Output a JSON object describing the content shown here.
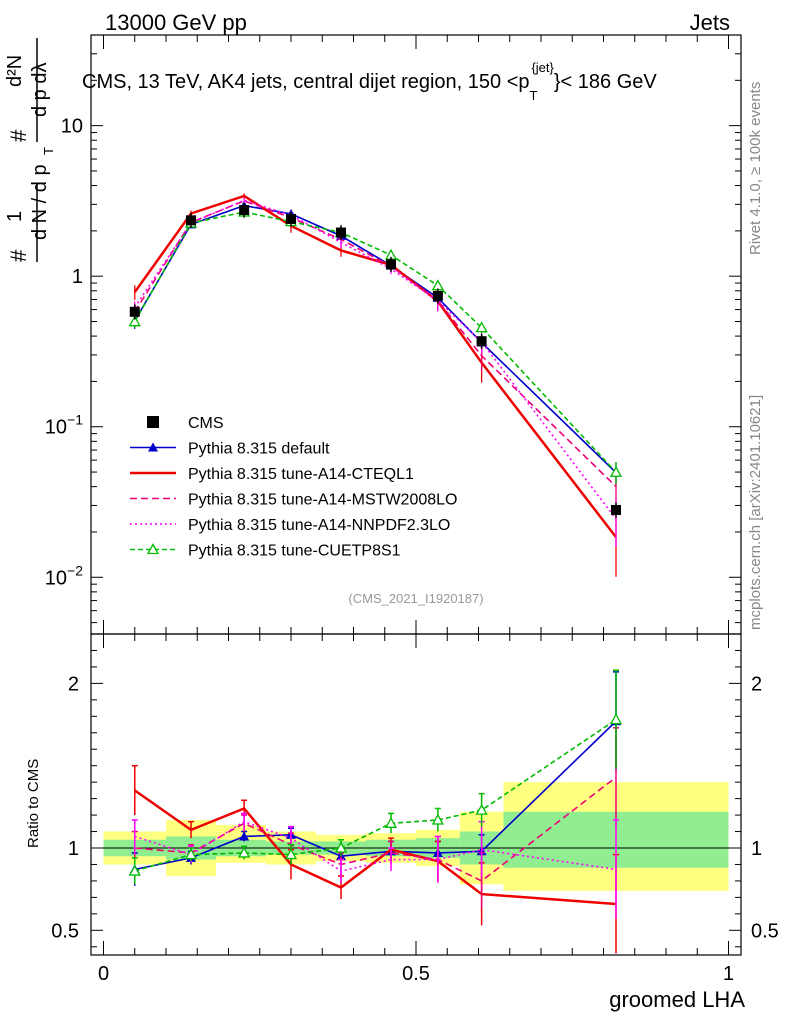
{
  "header": {
    "left": "13000 GeV pp",
    "right": "Jets",
    "title": "CMS, 13 TeV, AK4 jets, central dijet region, 150 <p",
    "title_sup": "{jet}",
    "title_sub": "T",
    "title_end": "}< 186 GeV",
    "analysis_id": "(CMS_2021_I1920187)"
  },
  "side_labels": {
    "rivet": "Rivet 4.1.0, ≥ 100k events",
    "mcplots": "mcplots.cern.ch [arXiv:2401.10621]"
  },
  "ylabel_main": {
    "hash": "#",
    "one": "1",
    "dN": "d N / d p",
    "T": "T",
    "d2N": "d²N",
    "dpT_dlambda": "d p   dλ"
  },
  "ylabel_ratio": "Ratio to CMS",
  "xlabel": "groomed LHA",
  "colors": {
    "cms": "#000000",
    "default": "#0000cc",
    "cteql1": "#ee0000",
    "mstw": "#ee0077",
    "nnpdf": "#ff00ff",
    "cuetp": "#00bb00",
    "band_outer": "#ffff80",
    "band_inner": "#90ee90"
  },
  "chart_data": {
    "type": "line",
    "x": [
      0.05,
      0.14,
      0.225,
      0.3,
      0.38,
      0.46,
      0.535,
      0.605,
      0.82
    ],
    "x_range": [
      -0.02,
      1.02
    ],
    "main": {
      "yscale": "log",
      "ylim": [
        0.0042,
        40
      ],
      "yticks": [
        {
          "v": 0.01,
          "label": "10",
          "sup": "−2"
        },
        {
          "v": 0.1,
          "label": "10",
          "sup": "−1"
        },
        {
          "v": 1,
          "label": "1",
          "sup": ""
        },
        {
          "v": 10,
          "label": "10",
          "sup": ""
        }
      ]
    },
    "ratio": {
      "ylim": [
        0.35,
        2.3
      ],
      "yticks": [
        0.5,
        1,
        2
      ]
    },
    "xticks": [
      {
        "v": 0,
        "label": "0"
      },
      {
        "v": 0.5,
        "label": "0.5"
      },
      {
        "v": 1,
        "label": "1"
      }
    ],
    "data": {
      "name": "CMS",
      "values": [
        0.58,
        2.35,
        2.75,
        2.4,
        1.95,
        1.2,
        0.74,
        0.37,
        0.028
      ],
      "bands": [
        {
          "x0": 0.0,
          "x1": 0.1,
          "in": [
            0.95,
            1.05
          ],
          "out": [
            0.9,
            1.1
          ]
        },
        {
          "x0": 0.1,
          "x1": 0.18,
          "in": [
            0.93,
            1.07
          ],
          "out": [
            0.83,
            1.17
          ]
        },
        {
          "x0": 0.18,
          "x1": 0.26,
          "in": [
            0.95,
            1.05
          ],
          "out": [
            0.91,
            1.14
          ]
        },
        {
          "x0": 0.26,
          "x1": 0.34,
          "in": [
            0.96,
            1.04
          ],
          "out": [
            0.9,
            1.1
          ]
        },
        {
          "x0": 0.34,
          "x1": 0.42,
          "in": [
            0.96,
            1.04
          ],
          "out": [
            0.92,
            1.08
          ]
        },
        {
          "x0": 0.42,
          "x1": 0.5,
          "in": [
            0.95,
            1.05
          ],
          "out": [
            0.91,
            1.09
          ]
        },
        {
          "x0": 0.5,
          "x1": 0.57,
          "in": [
            0.94,
            1.06
          ],
          "out": [
            0.89,
            1.11
          ]
        },
        {
          "x0": 0.57,
          "x1": 0.64,
          "in": [
            0.9,
            1.1
          ],
          "out": [
            0.78,
            1.22
          ]
        },
        {
          "x0": 0.64,
          "x1": 1.0,
          "in": [
            0.88,
            1.22
          ],
          "out": [
            0.74,
            1.4
          ]
        }
      ]
    },
    "series": [
      {
        "name": "Pythia 8.315 default",
        "key": "default",
        "dash": "",
        "marker": "triangle-filled",
        "ratio": [
          0.87,
          0.94,
          1.07,
          1.08,
          0.95,
          0.98,
          0.97,
          0.98,
          1.77
        ],
        "err": [
          0.1,
          0.04,
          0.03,
          0.04,
          0.05,
          0.06,
          0.07,
          0.1,
          0.3
        ]
      },
      {
        "name": "Pythia 8.315 tune-A14-CTEQL1",
        "key": "cteql1",
        "dash": "",
        "marker": "none",
        "ratio": [
          1.35,
          1.11,
          1.24,
          0.9,
          0.76,
          0.99,
          0.92,
          0.72,
          0.66
        ],
        "err": [
          0.15,
          0.05,
          0.05,
          0.09,
          0.07,
          0.07,
          0.12,
          0.19,
          0.3
        ]
      },
      {
        "name": "Pythia 8.315 tune-A14-MSTW2008LO",
        "key": "mstw",
        "dash": "7,4",
        "marker": "none",
        "ratio": [
          1.0,
          0.97,
          1.15,
          1.02,
          0.9,
          0.97,
          0.93,
          0.8,
          1.43
        ],
        "err": [
          0.1,
          0.05,
          0.05,
          0.07,
          0.07,
          0.07,
          0.14,
          0.17,
          0.3
        ]
      },
      {
        "name": "Pythia 8.315 tune-A14-NNPDF2.3LO",
        "key": "nnpdf",
        "dash": "2,3",
        "marker": "none",
        "ratio": [
          1.07,
          0.96,
          1.16,
          1.06,
          0.86,
          0.93,
          0.93,
          0.99,
          0.87
        ],
        "err": [
          0.1,
          0.05,
          0.05,
          0.07,
          0.07,
          0.07,
          0.14,
          0.17,
          0.3
        ]
      },
      {
        "name": "Pythia 8.315 tune-CUETP8S1",
        "key": "cuetp",
        "dash": "5,3",
        "marker": "triangle-open",
        "ratio": [
          0.86,
          0.96,
          0.97,
          0.96,
          1.0,
          1.15,
          1.17,
          1.23,
          1.78
        ],
        "err": [
          0.08,
          0.04,
          0.04,
          0.06,
          0.05,
          0.06,
          0.07,
          0.1,
          0.3
        ]
      }
    ],
    "legend": {
      "position": "bottom-left"
    }
  }
}
